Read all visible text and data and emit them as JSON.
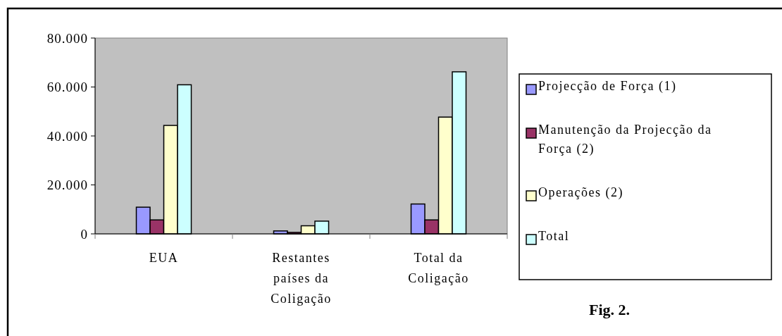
{
  "chart_data": {
    "type": "bar",
    "categories": [
      "EUA",
      "Restantes países da Coligação",
      "Total da Coligação"
    ],
    "series": [
      {
        "name": "Projecção de Força (1)",
        "color": "#9999ff",
        "values": [
          10900,
          1200,
          12200
        ]
      },
      {
        "name": "Manutenção da Projecção da Força (2)",
        "color": "#993366",
        "values": [
          5700,
          600,
          5700
        ]
      },
      {
        "name": "Operações (2)",
        "color": "#ffffcc",
        "values": [
          44300,
          3300,
          47700
        ]
      },
      {
        "name": "Total",
        "color": "#ccffff",
        "values": [
          60900,
          5200,
          66200
        ]
      }
    ],
    "ylim": [
      0,
      80000
    ],
    "yticks": [
      {
        "value": 0,
        "label": "0"
      },
      {
        "value": 20000,
        "label": "20.000"
      },
      {
        "value": 40000,
        "label": "40.000"
      },
      {
        "value": 60000,
        "label": "60.000"
      },
      {
        "value": 80000,
        "label": "80.000"
      }
    ],
    "grid": false,
    "legend": "right",
    "annotations": [
      "Fig. 2."
    ]
  }
}
